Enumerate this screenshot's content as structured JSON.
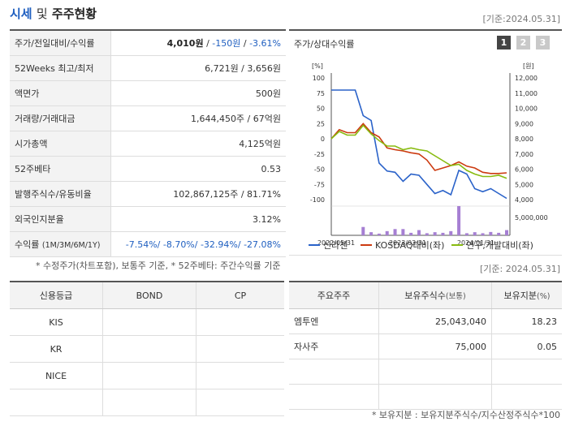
{
  "header": {
    "title_a": "시세",
    "title_b": "및",
    "title_c": "주주현황",
    "date": "[기준:2024.05.31]"
  },
  "quote": {
    "price_label": "주가/전일대비/수익률",
    "price": "4,010원",
    "change": "-150원",
    "change_pct": "-3.61%",
    "w52_label": "52Weeks 최고/최저",
    "w52_value": "6,721원 / 3,656원",
    "par_label": "액면가",
    "par_value": "500원",
    "volume_label": "거래량/거래대금",
    "volume_value": "1,644,450주 / 67억원",
    "mcap_label": "시가총액",
    "mcap_value": "4,125억원",
    "beta_label": "52주베타",
    "beta_value": "0.53",
    "shares_label": "발행주식수/유동비율",
    "shares_value": "102,867,125주 / 81.71%",
    "foreign_label": "외국인지분율",
    "foreign_value": "3.12%",
    "return_label": "수익률",
    "return_periods": "(1M/3M/6M/1Y)",
    "returns": "-7.54%/ -8.70%/ -32.94%/ -27.08%"
  },
  "footnote_left": "* 수정주가(차트포함), 보통주 기준, * 52주베타: 주간수익률 기준",
  "footnote_date": "[기준: 2024.05.31]",
  "chart": {
    "title": "주가/상대수익률",
    "buttons": [
      "1",
      "2",
      "3"
    ],
    "left_unit": "[%]",
    "right_unit": "[원]",
    "volume_tick": "5,000,000"
  },
  "chart_data": {
    "type": "line",
    "x_labels": [
      "2022/05/31",
      "2023/03/31",
      "2024/01/31"
    ],
    "ylim_left": [
      -100,
      100
    ],
    "left_ticks": [
      "100",
      "75",
      "50",
      "25",
      "0",
      "-25",
      "-50",
      "-75",
      "-100"
    ],
    "ylim_right": [
      4000,
      12000
    ],
    "right_ticks": [
      "12,000",
      "11,000",
      "10,000",
      "9,000",
      "8,000",
      "7,000",
      "6,000",
      "5,000",
      "4,000"
    ],
    "series": [
      {
        "name": "신라젠",
        "color": "#2a62c9",
        "values": [
          80,
          80,
          80,
          80,
          38,
          30,
          -40,
          -53,
          -55,
          -70,
          -58,
          -60,
          -75,
          -90,
          -85,
          -92,
          -52,
          -58,
          -82,
          -87,
          -82,
          -90,
          -98
        ]
      },
      {
        "name": "KOSDAQ대비(좌)",
        "color": "#cc3a10",
        "values": [
          0,
          15,
          10,
          10,
          25,
          10,
          3,
          -15,
          -18,
          -20,
          -23,
          -25,
          -35,
          -52,
          -48,
          -44,
          -38,
          -45,
          -48,
          -55,
          -57,
          -57,
          -56
        ]
      },
      {
        "name": "연구,개발대비(좌)",
        "color": "#88bb10",
        "values": [
          0,
          12,
          6,
          6,
          22,
          8,
          -3,
          -12,
          -12,
          -18,
          -15,
          -18,
          -20,
          -28,
          -36,
          -44,
          -42,
          -52,
          -58,
          -62,
          -62,
          -60,
          -65
        ]
      }
    ],
    "volume": {
      "name": "거래량",
      "color": "#a67fd3",
      "values": [
        0,
        0,
        0,
        0,
        4,
        1.5,
        0.8,
        2,
        3,
        3,
        1.2,
        2.5,
        1,
        1.5,
        1.2,
        2,
        14,
        1,
        1.5,
        1,
        1.6,
        1.2,
        2.5
      ]
    }
  },
  "credit": {
    "headers": [
      "신용등급",
      "BOND",
      "CP"
    ],
    "rows": [
      [
        "KIS",
        "",
        ""
      ],
      [
        "KR",
        "",
        ""
      ],
      [
        "NICE",
        "",
        ""
      ],
      [
        "",
        "",
        ""
      ]
    ]
  },
  "shareholders": {
    "headers": [
      "주요주주",
      "보유주식수",
      "보유지분"
    ],
    "header_units": [
      "",
      "(보통)",
      "(%)"
    ],
    "rows": [
      [
        "엠투엔",
        "25,043,040",
        "18.23"
      ],
      [
        "자사주",
        "75,000",
        "0.05"
      ],
      [
        "",
        "",
        ""
      ],
      [
        "",
        "",
        ""
      ]
    ]
  },
  "footnote_right": "* 보유지분 : 보유지분주식수/지수산정주식수*100"
}
